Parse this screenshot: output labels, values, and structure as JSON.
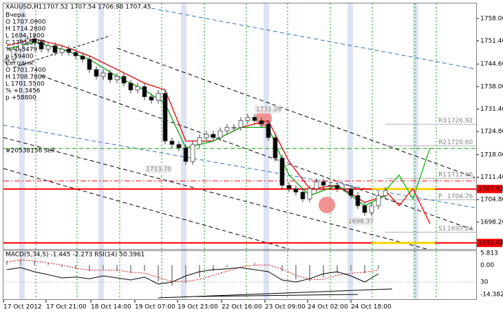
{
  "chart_data": {
    "type": "candlestick",
    "title": "XAUUSD,H1",
    "quote": "1707.52 1707.54 1706.98 1707.45",
    "info_lines": [
      "Вчера:",
      "O 1707.0900",
      "H 1714.2800",
      "L 1694.1800",
      "C 1701.5700",
      "% -0.3479",
      "p -59400",
      "Сегодня:",
      "O 1701.7400",
      "H 1708.7800",
      "L 1701.5500",
      "% +0.3456",
      "p +58800"
    ],
    "open": [
      1745,
      1746,
      1749,
      1751,
      1752,
      1751,
      1749,
      1750,
      1748,
      1749,
      1748,
      1747,
      1746,
      1743,
      1741,
      1742,
      1740,
      1741,
      1739,
      1737,
      1738,
      1735,
      1734,
      1736,
      1722,
      1721,
      1720,
      1716,
      1721,
      1723,
      1724,
      1723,
      1725,
      1726,
      1726,
      1728,
      1729,
      1728,
      1727,
      1723,
      1717,
      1709,
      1708,
      1707,
      1705,
      1708,
      1710,
      1709,
      1709,
      1708,
      1708,
      1706,
      1703,
      1701,
      1703,
      1706
    ],
    "high": [
      1747,
      1750,
      1752,
      1753,
      1753,
      1752,
      1751,
      1751,
      1750,
      1750,
      1749,
      1748,
      1747,
      1744,
      1743,
      1743,
      1742,
      1742,
      1740,
      1739,
      1739,
      1736,
      1737,
      1737,
      1723,
      1722,
      1721,
      1722,
      1724,
      1725,
      1725,
      1726,
      1727,
      1727,
      1729,
      1730,
      1730,
      1729,
      1728,
      1724,
      1718,
      1710,
      1709,
      1708,
      1709,
      1711,
      1711,
      1710,
      1710,
      1709,
      1709,
      1707,
      1704,
      1704,
      1707,
      1708.5
    ],
    "low": [
      1744,
      1745,
      1748,
      1750,
      1750,
      1748,
      1748,
      1747,
      1747,
      1747,
      1746,
      1745,
      1742,
      1740,
      1740,
      1739,
      1739,
      1738,
      1736,
      1736,
      1734,
      1733,
      1733,
      1721,
      1720,
      1719,
      1715,
      1715,
      1720,
      1722,
      1722,
      1722,
      1724,
      1725,
      1725,
      1727,
      1727,
      1726,
      1722,
      1716,
      1708,
      1707,
      1706,
      1704,
      1704,
      1707,
      1708,
      1708,
      1707,
      1707,
      1705,
      1702,
      1700,
      1700,
      1702,
      1705
    ],
    "close": [
      1746,
      1749,
      1751,
      1752,
      1751,
      1749,
      1750,
      1748,
      1749,
      1748,
      1747,
      1746,
      1743,
      1741,
      1742,
      1740,
      1741,
      1739,
      1737,
      1738,
      1735,
      1734,
      1736,
      1722,
      1721,
      1720,
      1716,
      1721,
      1723,
      1724,
      1723,
      1725,
      1726,
      1726,
      1728,
      1729,
      1728,
      1727,
      1723,
      1717,
      1709,
      1708,
      1707,
      1705,
      1708,
      1710,
      1709,
      1709,
      1708,
      1708,
      1706,
      1703,
      1701,
      1703,
      1706,
      1707.45
    ],
    "up_color": "#ffffff",
    "down_color": "#000000",
    "xticks": [
      {
        "value": -0.5,
        "label": "17 Oct 2012"
      },
      {
        "value": 5.7,
        "label": "17 Oct 21:00"
      },
      {
        "value": 12.2,
        "label": "18 Oct 14:00"
      },
      {
        "value": 18.6,
        "label": "19 Oct 07:00"
      },
      {
        "value": 24.8,
        "label": "19 Oct 23:00"
      },
      {
        "value": 31.2,
        "label": "22 Oct 16:00"
      },
      {
        "value": 37.5,
        "label": "23 Oct 09:00"
      },
      {
        "value": 43.7,
        "label": "24 Oct 02:00"
      },
      {
        "value": 50,
        "label": "24 Oct 18:00"
      }
    ],
    "ylim": [
      1690.7,
      1762.4
    ],
    "yticks": [
      {
        "value": 1758,
        "label": "1758.00"
      },
      {
        "value": 1751.4,
        "label": "1751.40"
      },
      {
        "value": 1744.6,
        "label": "1744.60"
      },
      {
        "value": 1738,
        "label": "1738.00"
      },
      {
        "value": 1731.4,
        "label": "1731.40"
      },
      {
        "value": 1724.8,
        "label": "1724.80"
      },
      {
        "value": 1718,
        "label": "1718.00"
      },
      {
        "value": 1711.4,
        "label": "1711.40"
      },
      {
        "value": 1704.8,
        "label": "1704.80"
      },
      {
        "value": 1698.2,
        "label": "1698.20"
      }
    ],
    "moving_averages": [
      {
        "color": "#e00000",
        "x": [
          0,
          4,
          8,
          12,
          16,
          20,
          23,
          26,
          30,
          34,
          38,
          41,
          44,
          48,
          52,
          55
        ],
        "values": [
          1750,
          1752,
          1750,
          1747,
          1743,
          1739,
          1737,
          1722,
          1722,
          1726,
          1728,
          1716,
          1708,
          1709,
          1704,
          1706
        ]
      },
      {
        "color": "#00a000",
        "x": [
          0,
          4,
          8,
          12,
          16,
          20,
          23,
          26,
          30,
          34,
          38,
          41,
          44,
          48,
          52,
          55
        ],
        "values": [
          1749,
          1751,
          1749,
          1746,
          1741,
          1737,
          1733,
          1720,
          1722,
          1726,
          1726,
          1712,
          1706,
          1709,
          1703,
          1706
        ]
      }
    ],
    "projections": [
      {
        "color": "#00c000",
        "x": [
          55,
          57,
          59,
          61.5
        ],
        "values": [
          1707.45,
          1712,
          1705,
          1720
        ]
      },
      {
        "color": "#ff0000",
        "x": [
          55,
          57,
          59,
          61.5
        ],
        "values": [
          1707.45,
          1703,
          1708,
          1697.7
        ]
      }
    ],
    "levels": [
      {
        "name": "R3",
        "value": 1726.92
      },
      {
        "name": "R2",
        "value": 1720.6,
        "value_label": "1720.60"
      },
      {
        "name": "R1",
        "value": 1711.06
      },
      {
        "name": "P",
        "value": 1704.76
      },
      {
        "name": "S1",
        "value": 1695.24
      }
    ],
    "price_markers": [
      {
        "value": 1707.92,
        "color": "#ff0000"
      },
      {
        "value": 1692.08,
        "color": "#ff0000"
      }
    ],
    "price_labels": [
      1731.26,
      {
        "value": 1713.7,
        "label": "1713.70"
      },
      1698.37
    ],
    "order": {
      "label": "#20538156 sell",
      "value": 1719.8
    },
    "indicator_label": "MACD(5,34,5) -1.445 -2.273  RSI(14) 50.3961",
    "indicator": {
      "ylim": [
        -14.382,
        5.813
      ],
      "yticks": [
        5.813,
        {
          "value": 0,
          "label": "0.00"
        },
        -14.382
      ],
      "rsi_ylim": [
        0,
        100
      ],
      "rsi_yticks": [
        30
      ],
      "x": [
        0,
        2,
        4,
        6,
        8,
        10,
        12,
        14,
        16,
        18,
        20,
        22,
        24,
        26,
        28,
        30,
        32,
        34,
        36,
        38,
        40,
        42,
        44,
        46,
        48,
        50,
        52,
        54
      ],
      "histogram": [
        2,
        3,
        2,
        1,
        -1,
        -2,
        -3,
        -2,
        -3,
        -4,
        -3,
        -8,
        -10,
        -9,
        -6,
        -3,
        -1,
        0,
        1,
        0,
        -3,
        -7,
        -8,
        -6,
        -4,
        -3,
        -4,
        -2
      ],
      "signal": [
        1.5,
        2.5,
        2,
        1,
        0,
        -1.5,
        -2.5,
        -2.5,
        -2.5,
        -3.5,
        -4,
        -6,
        -8,
        -8,
        -7,
        -5,
        -3,
        -1,
        0,
        0,
        -2,
        -5,
        -7,
        -7,
        -5,
        -4,
        -3.5,
        -2.5
      ],
      "rsi": [
        60,
        65,
        55,
        48,
        40,
        42,
        38,
        45,
        40,
        35,
        42,
        25,
        30,
        45,
        55,
        60,
        62,
        65,
        60,
        55,
        35,
        30,
        38,
        50,
        55,
        45,
        30,
        50
      ]
    }
  }
}
